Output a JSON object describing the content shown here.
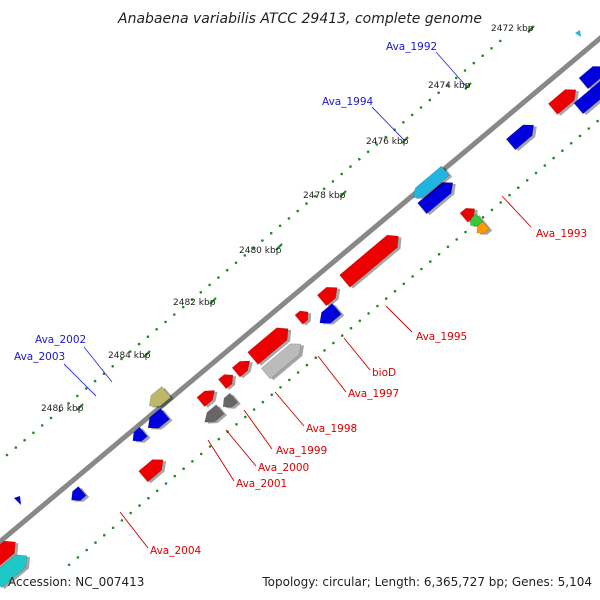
{
  "title": "Anabaena variabilis ATCC 29413, complete genome",
  "accession": "Accession: NC_007413",
  "topology": "Topology: circular; Length: 6,365,727 bp; Genes: 5,104",
  "ticks": [
    "2472 kbp",
    "2474 kbp",
    "2476 kbp",
    "2478 kbp",
    "2480 kbp",
    "2482 kbp",
    "2484 kbp",
    "2486 kbp"
  ],
  "gene_labels": [
    {
      "name": "Ava_1992",
      "color": "#1a1acc"
    },
    {
      "name": "Ava_1994",
      "color": "#1a1acc"
    },
    {
      "name": "Ava_1993",
      "color": "#dd0000"
    },
    {
      "name": "Ava_1995",
      "color": "#dd0000"
    },
    {
      "name": "bioD",
      "color": "#dd0000"
    },
    {
      "name": "Ava_1997",
      "color": "#dd0000"
    },
    {
      "name": "Ava_1998",
      "color": "#dd0000"
    },
    {
      "name": "Ava_1999",
      "color": "#dd0000"
    },
    {
      "name": "Ava_2000",
      "color": "#dd0000"
    },
    {
      "name": "Ava_2001",
      "color": "#dd0000"
    },
    {
      "name": "Ava_2002",
      "color": "#1a1acc"
    },
    {
      "name": "Ava_2003",
      "color": "#1a1acc"
    },
    {
      "name": "Ava_2004",
      "color": "#dd0000"
    }
  ],
  "colors": {
    "backbone": "#888888",
    "dots": "#228b22",
    "forward_gene": "#ee0000",
    "reverse_gene": "#0000dd",
    "rna_cyan": "#1fb5e0",
    "pseudo_khaki": "#bdb76b",
    "pseudo_gray": "#bbbbbb",
    "dark_gray": "#666666",
    "teal": "#1fc8c8",
    "green": "#33cc33",
    "orange": "#ff9900"
  }
}
